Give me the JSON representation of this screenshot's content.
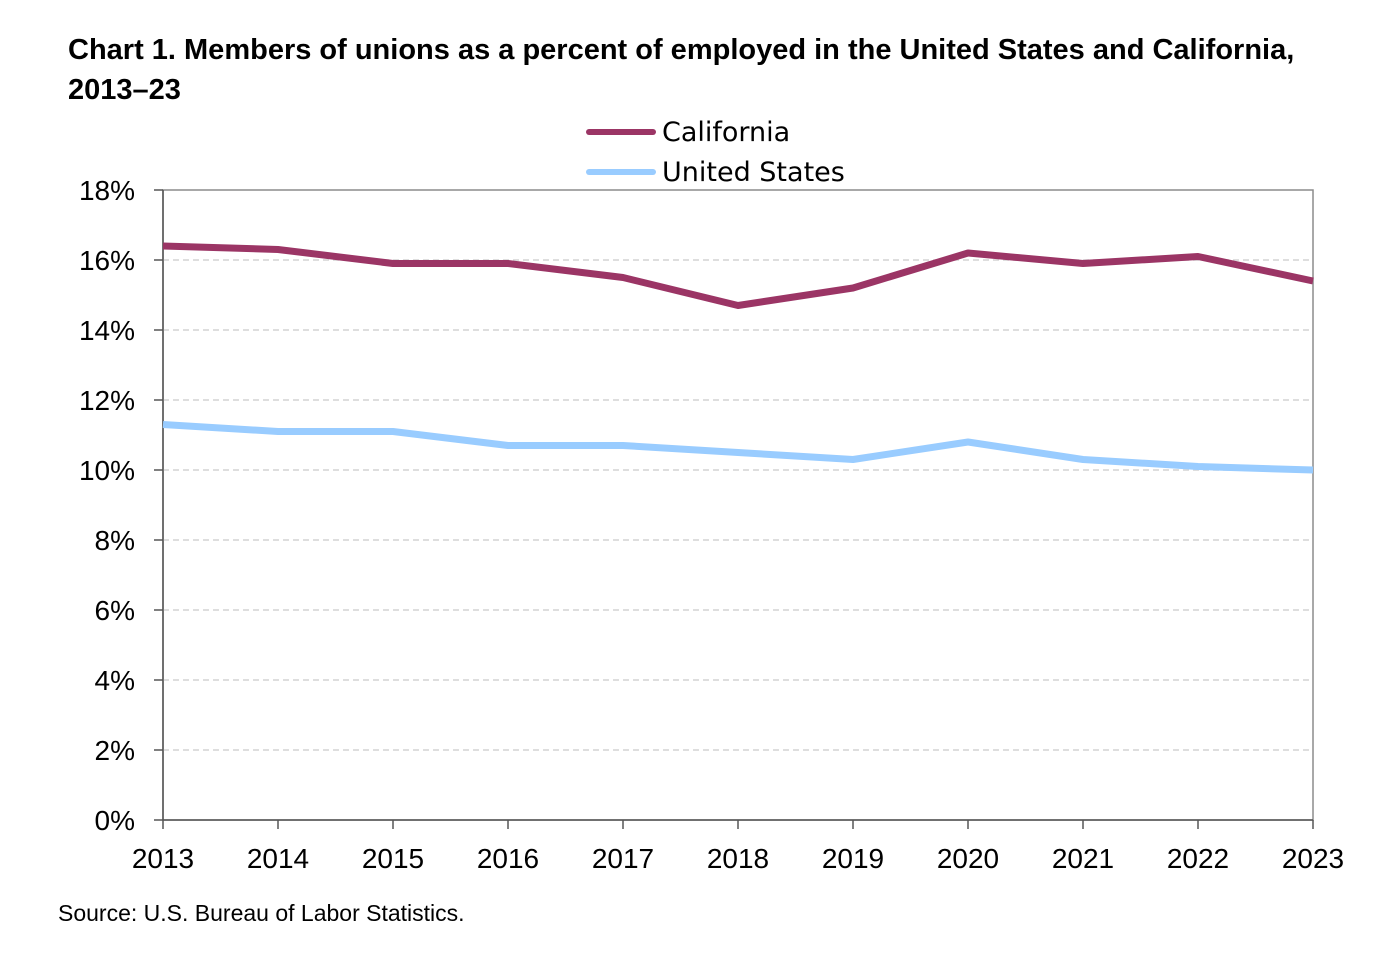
{
  "chart_data": {
    "type": "line",
    "title": "Chart 1. Members of unions as a percent of employed in the United States and California, 2013–23",
    "xlabel": "",
    "ylabel": "",
    "x": [
      "2013",
      "2014",
      "2015",
      "2016",
      "2017",
      "2018",
      "2019",
      "2020",
      "2021",
      "2022",
      "2023"
    ],
    "ylim": [
      0,
      18
    ],
    "yticks": [
      "0%",
      "2%",
      "4%",
      "6%",
      "8%",
      "10%",
      "12%",
      "14%",
      "16%",
      "18%"
    ],
    "grid": "horizontal dashed",
    "legend_position": "top-center",
    "series": [
      {
        "name": "California",
        "color": "#9b3565",
        "values": [
          16.4,
          16.3,
          15.9,
          15.9,
          15.5,
          14.7,
          15.2,
          16.2,
          15.9,
          16.1,
          15.4
        ]
      },
      {
        "name": "United States",
        "color": "#99ccff",
        "values": [
          11.3,
          11.1,
          11.1,
          10.7,
          10.7,
          10.5,
          10.3,
          10.8,
          10.3,
          10.1,
          10.0
        ]
      }
    ]
  },
  "source": "Source: U.S. Bureau of Labor Statistics."
}
